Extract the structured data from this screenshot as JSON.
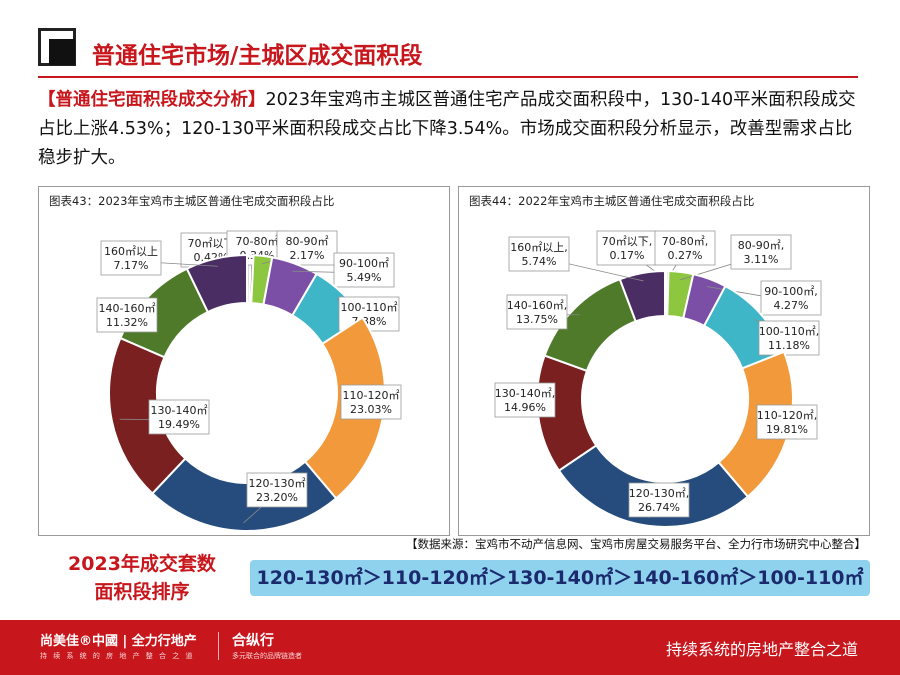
{
  "header": {
    "title": "普通住宅市场/主城区成交面积段"
  },
  "intro": {
    "highlight": "【普通住宅面积段成交分析】",
    "text": "2023年宝鸡市主城区普通住宅产品成交面积段中，130-140平米面积段成交占比上涨4.53%；120-130平米面积段成交占比下降3.54%。市场成交面积段分析显示，改善型需求占比稳步扩大。"
  },
  "chart_data": [
    {
      "type": "pie",
      "title": "图表43：2023年宝鸡市主城区普通住宅成交面积段占比",
      "categories": [
        "70㎡以下",
        "70-80㎡",
        "80-90㎡",
        "90-100㎡",
        "100-110㎡",
        "110-120㎡",
        "120-130㎡",
        "130-140㎡",
        "140-160㎡",
        "160㎡以上"
      ],
      "values": [
        0.42,
        0.34,
        2.17,
        5.49,
        7.38,
        23.03,
        23.2,
        19.49,
        11.32,
        7.17
      ],
      "labels": [
        "0.42%",
        "0.34%",
        "2.17%",
        "5.49%",
        "7.38%",
        "23.03%",
        "23.20%",
        "19.49%",
        "11.32%",
        "7.17%"
      ]
    },
    {
      "type": "pie",
      "title": "图表44：2022年宝鸡市主城区普通住宅成交面积段占比",
      "categories": [
        "70㎡以下",
        "70-80㎡",
        "80-90㎡",
        "90-100㎡",
        "100-110㎡",
        "110-120㎡",
        "120-130㎡",
        "130-140㎡",
        "140-160㎡",
        "160㎡以上"
      ],
      "values": [
        0.17,
        0.27,
        3.11,
        4.27,
        11.18,
        19.81,
        26.74,
        14.96,
        13.75,
        5.74
      ],
      "labels": [
        "0.17%",
        "0.27%",
        "3.11%",
        "4.27%",
        "11.18%",
        "19.81%",
        "26.74%",
        "14.96%",
        "13.75%",
        "5.74%"
      ],
      "label_separator": ","
    }
  ],
  "colors": {
    "segments": [
      "#d9d9d9",
      "#7f7f7f",
      "#8dc63f",
      "#7b4fa6",
      "#3fb5c8",
      "#f29a3b",
      "#254c7c",
      "#7a2020",
      "#4e7a2a",
      "#4a2e63"
    ],
    "accent": "#c8161d",
    "rank_bar": "#8fd2ee"
  },
  "source": "【数据来源：宝鸡市不动产信息网、宝鸡市房屋交易服务平台、全力行市场研究中心整合】",
  "ranking": {
    "label_line1": "2023年成交套数",
    "label_line2": "面积段排序",
    "order": "120-130㎡＞110-120㎡＞130-140㎡＞140-160㎡＞100-110㎡"
  },
  "footer": {
    "brand": "尚美佳®中國 | 全力行地产",
    "brand_sub": "持 续 系 统 的 房 地 产 整 合 之 道",
    "logo": "合纵行",
    "logo_sub": "多元联合的品牌链造者",
    "slogan": "持续系统的房地产整合之道"
  }
}
